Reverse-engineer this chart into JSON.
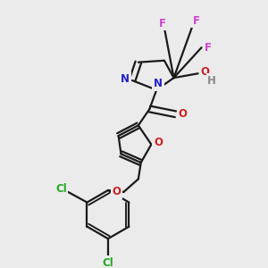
{
  "background_color": "#ebebeb",
  "figsize": [
    3.0,
    3.0
  ],
  "dpi": 100,
  "line_color": "#1a1a1a",
  "lw": 1.6,
  "colors": {
    "F": "#cc44cc",
    "N": "#2222cc",
    "O": "#cc2222",
    "H": "#888888",
    "Cl": "#22aa22",
    "C": "#1a1a1a"
  },
  "fontsize": 8.5
}
